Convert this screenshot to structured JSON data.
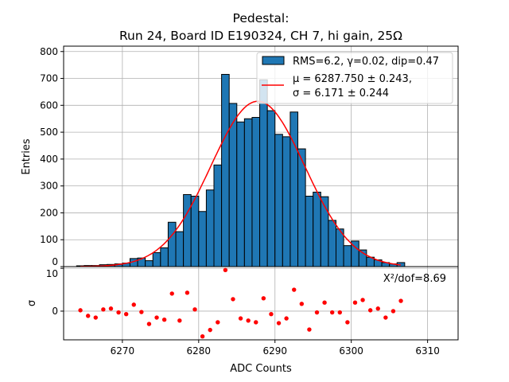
{
  "chart_data": {
    "type": "bar",
    "title_line1": "Pedestal:",
    "title_line2": "Run 24, Board ID E190324, CH 7, hi gain, 25Ω",
    "xlabel": "ADC Counts",
    "ylabel": "Entries",
    "residual_ylabel": "σ",
    "xlim": [
      6262.3,
      6314
    ],
    "ylim": [
      0,
      820
    ],
    "residual_ylim": [
      -6.7,
      10.4
    ],
    "grid": true,
    "bin_width": 1,
    "bin_edges_start": 6264,
    "values": [
      3,
      4,
      4,
      7,
      8,
      10,
      13,
      30,
      32,
      22,
      52,
      70,
      165,
      130,
      268,
      262,
      205,
      285,
      378,
      715,
      607,
      538,
      550,
      555,
      695,
      580,
      492,
      483,
      575,
      438,
      262,
      277,
      260,
      172,
      140,
      78,
      95,
      62,
      35,
      25,
      15,
      10,
      15
    ],
    "residuals": [
      0.2,
      -1.1,
      -1.5,
      0.4,
      0.6,
      -0.3,
      -0.7,
      1.5,
      -0.2,
      -3.0,
      -1.5,
      -2.0,
      4.1,
      -2.2,
      4.3,
      0.4,
      -5.9,
      -4.4,
      -2.6,
      9.6,
      2.8,
      -1.7,
      -2.2,
      -2.6,
      3.0,
      -0.7,
      -2.8,
      -1.7,
      5.0,
      1.7,
      -4.3,
      -0.3,
      2.0,
      -0.3,
      -0.3,
      -2.6,
      2.0,
      2.6,
      0.2,
      0.6,
      -1.5,
      0,
      2.4
    ],
    "fit": {
      "mu": 6287.75,
      "sigma": 6.171,
      "amplitude": 615,
      "range": [
        6264.5,
        6306.5
      ]
    },
    "xticks": [
      "6270",
      "6280",
      "6290",
      "6300",
      "6310"
    ],
    "yticks": [
      "0",
      "100",
      "200",
      "300",
      "400",
      "500",
      "600",
      "700",
      "800"
    ],
    "residual_yticks": [
      "0",
      "10"
    ],
    "legend": {
      "placement": "top-right",
      "hist_label": "RMS=6.2, γ=0.02, dip=0.47",
      "fit_label_line1": "μ = 6287.750 ± 0.243,",
      "fit_label_line2": "σ = 6.171 ± 0.244"
    },
    "chi2_label": "X²/dof=8.69",
    "colors": {
      "bar": "#1f77b4",
      "fit": "#ff0000",
      "grid": "#b0b0b0"
    }
  }
}
